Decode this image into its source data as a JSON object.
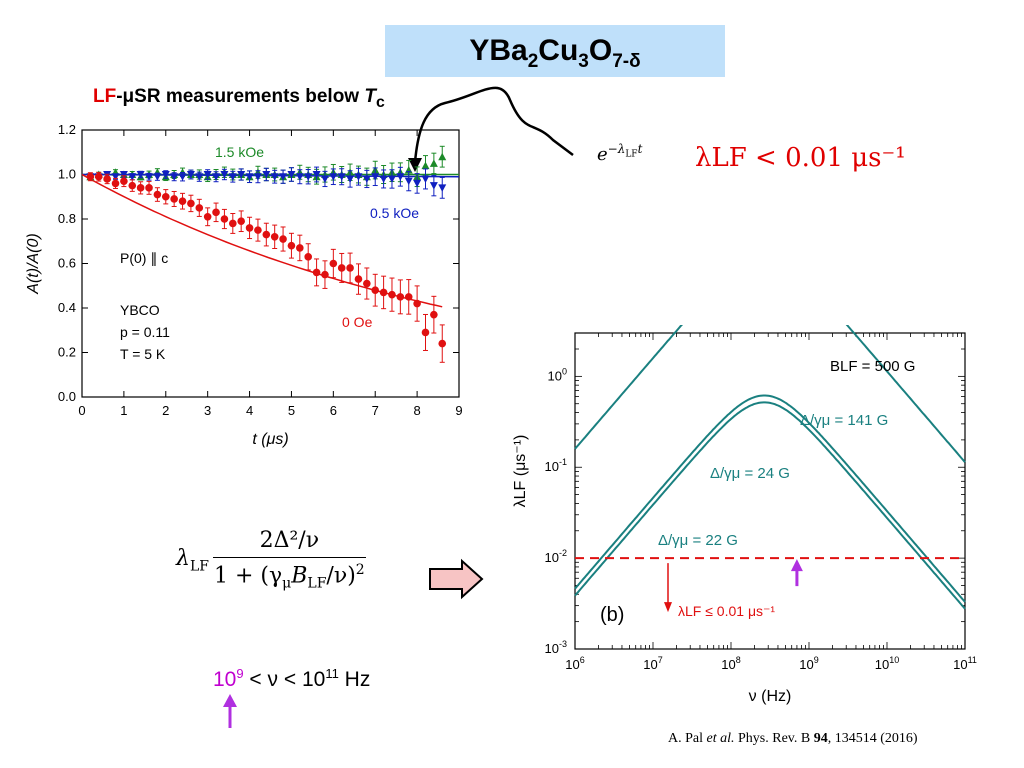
{
  "title": {
    "main": "YBa",
    "s1": "2",
    "m2": "Cu",
    "s2": "3",
    "m3": "O",
    "s3": "7-δ"
  },
  "subtitle": {
    "lf": "LF",
    "rest": "-μSR measurements below ",
    "t": "T",
    "c": "c"
  },
  "exp_formula": {
    "base": "e",
    "exponent": "−λ",
    "sub": "LF",
    "t": "t"
  },
  "lambda_limit": "λLF < 0.01 μs⁻¹",
  "formula": {
    "lhs": "λ",
    "lhs_sub": "LF",
    "numerator": "2Δ²/ν",
    "den_a": "1 + (γ",
    "den_b": "μ",
    "den_c": "B",
    "den_d": "LF",
    "den_e": "/ν)",
    "den_f": "2"
  },
  "freq_range": {
    "a": "10",
    "a_exp": "9",
    "mid": " < ν < ",
    "b": "10",
    "b_exp": "11",
    "unit": " Hz"
  },
  "citation": {
    "a": "A. Pal ",
    "b": "et al.",
    "c": " Phys. Rev. B ",
    "d": "94",
    "e": ", 134514 (2016)"
  },
  "colors": {
    "red": "#e01010",
    "green": "#1c8a28",
    "blue": "#1020c0",
    "teal": "#1a8080",
    "purple": "#b030e0",
    "title_bg": "#bfe0fa"
  },
  "chart_data": [
    {
      "type": "scatter",
      "xlabel": "t (μs)",
      "ylabel": "A(t)/A(0)",
      "xlim": [
        0,
        9
      ],
      "ylim": [
        0,
        1.2
      ],
      "xticks": [
        0,
        1,
        2,
        3,
        4,
        5,
        6,
        7,
        8,
        9
      ],
      "yticks": [
        0.0,
        0.2,
        0.4,
        0.6,
        0.8,
        1.0,
        1.2
      ],
      "annotations": [
        "P(0) ∥ c",
        "YBCO",
        "p = 0.11",
        "T = 5 K"
      ],
      "series": [
        {
          "name": "1.5 kOe",
          "color": "#1c8a28",
          "marker": "triangle-up",
          "x": [
            0.2,
            0.4,
            0.6,
            0.8,
            1.0,
            1.2,
            1.4,
            1.6,
            1.8,
            2.0,
            2.2,
            2.4,
            2.6,
            2.8,
            3.0,
            3.2,
            3.4,
            3.6,
            3.8,
            4.0,
            4.2,
            4.4,
            4.6,
            4.8,
            5.0,
            5.2,
            5.4,
            5.6,
            5.8,
            6.0,
            6.2,
            6.4,
            6.6,
            6.8,
            7.0,
            7.2,
            7.4,
            7.6,
            7.8,
            8.0,
            8.2,
            8.4,
            8.6
          ],
          "y": [
            0.99,
            1.0,
            0.99,
            1.01,
            1.0,
            1.0,
            0.99,
            1.0,
            1.01,
            0.99,
            1.0,
            1.01,
            1.0,
            1.0,
            0.99,
            1.0,
            1.01,
            1.0,
            1.0,
            0.99,
            1.01,
            1.0,
            1.0,
            0.99,
            1.0,
            1.01,
            1.0,
            0.99,
            1.0,
            1.01,
            1.0,
            1.01,
            1.0,
            0.99,
            1.02,
            1.0,
            1.01,
            1.01,
            1.02,
            0.99,
            1.04,
            1.05,
            1.08
          ]
        },
        {
          "name": "0.5 kOe",
          "color": "#1020c0",
          "marker": "triangle-down",
          "x": [
            0.2,
            0.4,
            0.6,
            0.8,
            1.0,
            1.2,
            1.4,
            1.6,
            1.8,
            2.0,
            2.2,
            2.4,
            2.6,
            2.8,
            3.0,
            3.2,
            3.4,
            3.6,
            3.8,
            4.0,
            4.2,
            4.4,
            4.6,
            4.8,
            5.0,
            5.2,
            5.4,
            5.6,
            5.8,
            6.0,
            6.2,
            6.4,
            6.6,
            6.8,
            7.0,
            7.2,
            7.4,
            7.6,
            7.8,
            8.0,
            8.2,
            8.4,
            8.6
          ],
          "y": [
            0.99,
            0.99,
            1.0,
            0.99,
            1.0,
            0.99,
            1.0,
            0.99,
            0.99,
            1.0,
            0.99,
            0.99,
            1.0,
            0.99,
            1.0,
            0.99,
            1.0,
            0.99,
            1.0,
            0.99,
            0.99,
            1.0,
            0.99,
            0.99,
            1.0,
            0.99,
            0.99,
            1.0,
            0.98,
            0.99,
            0.99,
            0.98,
            0.99,
            0.98,
            0.99,
            0.98,
            0.98,
            0.99,
            0.97,
            0.96,
            0.98,
            0.95,
            0.94
          ]
        },
        {
          "name": "0 Oe",
          "color": "#e01010",
          "marker": "circle",
          "x": [
            0.2,
            0.4,
            0.6,
            0.8,
            1.0,
            1.2,
            1.4,
            1.6,
            1.8,
            2.0,
            2.2,
            2.4,
            2.6,
            2.8,
            3.0,
            3.2,
            3.4,
            3.6,
            3.8,
            4.0,
            4.2,
            4.4,
            4.6,
            4.8,
            5.0,
            5.2,
            5.4,
            5.6,
            5.8,
            6.0,
            6.2,
            6.4,
            6.6,
            6.8,
            7.0,
            7.2,
            7.4,
            7.6,
            7.8,
            8.0,
            8.2,
            8.4,
            8.6
          ],
          "y": [
            0.99,
            0.99,
            0.98,
            0.96,
            0.97,
            0.95,
            0.94,
            0.94,
            0.91,
            0.9,
            0.89,
            0.88,
            0.87,
            0.85,
            0.81,
            0.83,
            0.8,
            0.78,
            0.79,
            0.76,
            0.75,
            0.73,
            0.72,
            0.71,
            0.68,
            0.67,
            0.63,
            0.56,
            0.55,
            0.6,
            0.58,
            0.58,
            0.53,
            0.51,
            0.48,
            0.47,
            0.46,
            0.45,
            0.45,
            0.42,
            0.29,
            0.37,
            0.24
          ]
        }
      ],
      "fits": [
        {
          "name": "1.5 kOe fit",
          "color": "#1c8a28",
          "x": [
            0,
            9
          ],
          "y": [
            1.0,
            1.0
          ]
        },
        {
          "name": "0.5 kOe fit",
          "color": "#1020c0",
          "x": [
            0,
            9
          ],
          "y": [
            1.0,
            0.99
          ]
        },
        {
          "name": "0 Oe fit",
          "color": "#e01010",
          "x": [
            0,
            8.6
          ],
          "model": "exp",
          "A0": 1.0,
          "lambda": 0.105
        }
      ]
    },
    {
      "type": "line",
      "xscale": "log",
      "yscale": "log",
      "xlabel": "ν (Hz)",
      "ylabel": "λLF (μs⁻¹)",
      "xlim": [
        1000000,
        100000000000
      ],
      "ylim": [
        0.001,
        3
      ],
      "panel_label": "(b)",
      "annotation": "BLF = 500 G",
      "threshold": {
        "y": 0.01,
        "label": "λLF ≤ 0.01 μs⁻¹",
        "color": "#e01010"
      },
      "marker_x": 700000000,
      "x_tick_exponents": [
        6,
        7,
        8,
        9,
        10,
        11
      ],
      "y_tick_exponents": [
        -3,
        -2,
        -1,
        0
      ],
      "series": [
        {
          "name": "Δ/γμ = 141 G",
          "delta_over_gamma_G": 141,
          "color": "#1a8080"
        },
        {
          "name": "Δ/γμ = 24 G",
          "delta_over_gamma_G": 24,
          "color": "#1a8080"
        },
        {
          "name": "Δ/γμ = 22 G",
          "delta_over_gamma_G": 22,
          "color": "#1a8080"
        }
      ],
      "model": {
        "gamma_mu_MHz_per_G": 0.0851,
        "B_LF_G": 500
      }
    }
  ]
}
